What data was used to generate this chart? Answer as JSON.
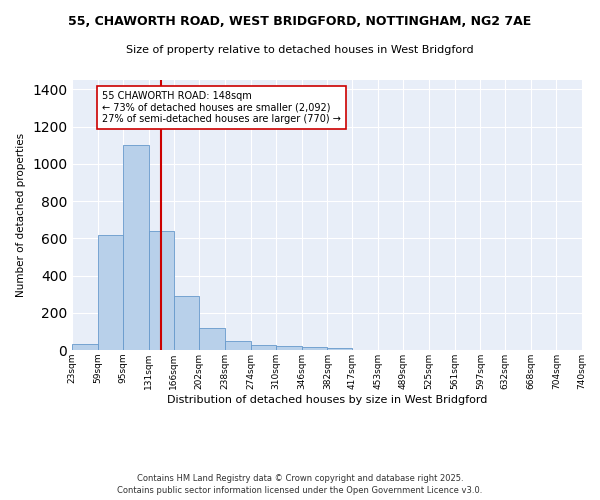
{
  "title_line1": "55, CHAWORTH ROAD, WEST BRIDGFORD, NOTTINGHAM, NG2 7AE",
  "title_line2": "Size of property relative to detached houses in West Bridgford",
  "xlabel": "Distribution of detached houses by size in West Bridgford",
  "ylabel": "Number of detached properties",
  "bar_color": "#b8d0ea",
  "bar_edge_color": "#6699cc",
  "background_color": "#e8eef8",
  "grid_color": "#ffffff",
  "annotation_line_color": "#cc0000",
  "annotation_box_color": "#cc0000",
  "annotation_text": "55 CHAWORTH ROAD: 148sqm\n← 73% of detached houses are smaller (2,092)\n27% of semi-detached houses are larger (770) →",
  "property_size": 148,
  "bin_edges": [
    23,
    59,
    95,
    131,
    166,
    202,
    238,
    274,
    310,
    346,
    382,
    417,
    453,
    489,
    525,
    561,
    597,
    632,
    668,
    704,
    740
  ],
  "bar_heights": [
    30,
    620,
    1100,
    640,
    290,
    120,
    50,
    25,
    20,
    15,
    10,
    0,
    0,
    0,
    0,
    0,
    0,
    0,
    0,
    0
  ],
  "ylim": [
    0,
    1450
  ],
  "yticks": [
    0,
    200,
    400,
    600,
    800,
    1000,
    1200,
    1400
  ],
  "footer_line1": "Contains HM Land Registry data © Crown copyright and database right 2025.",
  "footer_line2": "Contains public sector information licensed under the Open Government Licence v3.0."
}
